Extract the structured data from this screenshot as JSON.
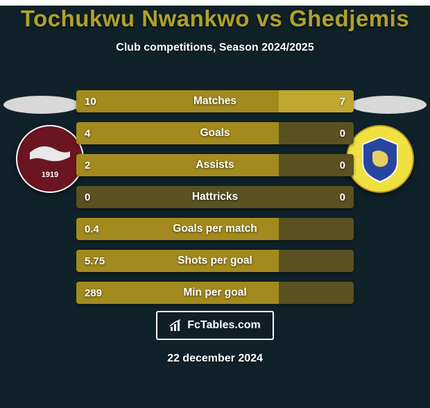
{
  "background_color": "#102229",
  "title": {
    "text": "Tochukwu Nwankwo vs Ghedjemis",
    "color": "#b0a02c"
  },
  "subtitle": {
    "text": "Club competitions, Season 2024/2025",
    "color": "#ffffff"
  },
  "ellipse_color": "#d8d8d8",
  "badges": {
    "left": {
      "bg": "#6a1520",
      "text": "1919",
      "text_color": "#ffffff"
    },
    "right": {
      "bg": "#f0e040",
      "text": "",
      "text_color": "#203a8a"
    }
  },
  "bars": {
    "track_color": "#5a5220",
    "left_fill_color": "#a28a1e",
    "right_fill_color": "#c0a830",
    "rows": [
      {
        "label": "Matches",
        "left_val": "10",
        "right_val": "7",
        "left_pct": 73,
        "right_pct": 27
      },
      {
        "label": "Goals",
        "left_val": "4",
        "right_val": "0",
        "left_pct": 73,
        "right_pct": 0
      },
      {
        "label": "Assists",
        "left_val": "2",
        "right_val": "0",
        "left_pct": 73,
        "right_pct": 0
      },
      {
        "label": "Hattricks",
        "left_val": "0",
        "right_val": "0",
        "left_pct": 0,
        "right_pct": 0
      },
      {
        "label": "Goals per match",
        "left_val": "0.4",
        "right_val": "",
        "left_pct": 73,
        "right_pct": 0
      },
      {
        "label": "Shots per goal",
        "left_val": "5.75",
        "right_val": "",
        "left_pct": 73,
        "right_pct": 0
      },
      {
        "label": "Min per goal",
        "left_val": "289",
        "right_val": "",
        "left_pct": 73,
        "right_pct": 0
      }
    ]
  },
  "footer_logo": "FcTables.com",
  "date": "22 december 2024"
}
